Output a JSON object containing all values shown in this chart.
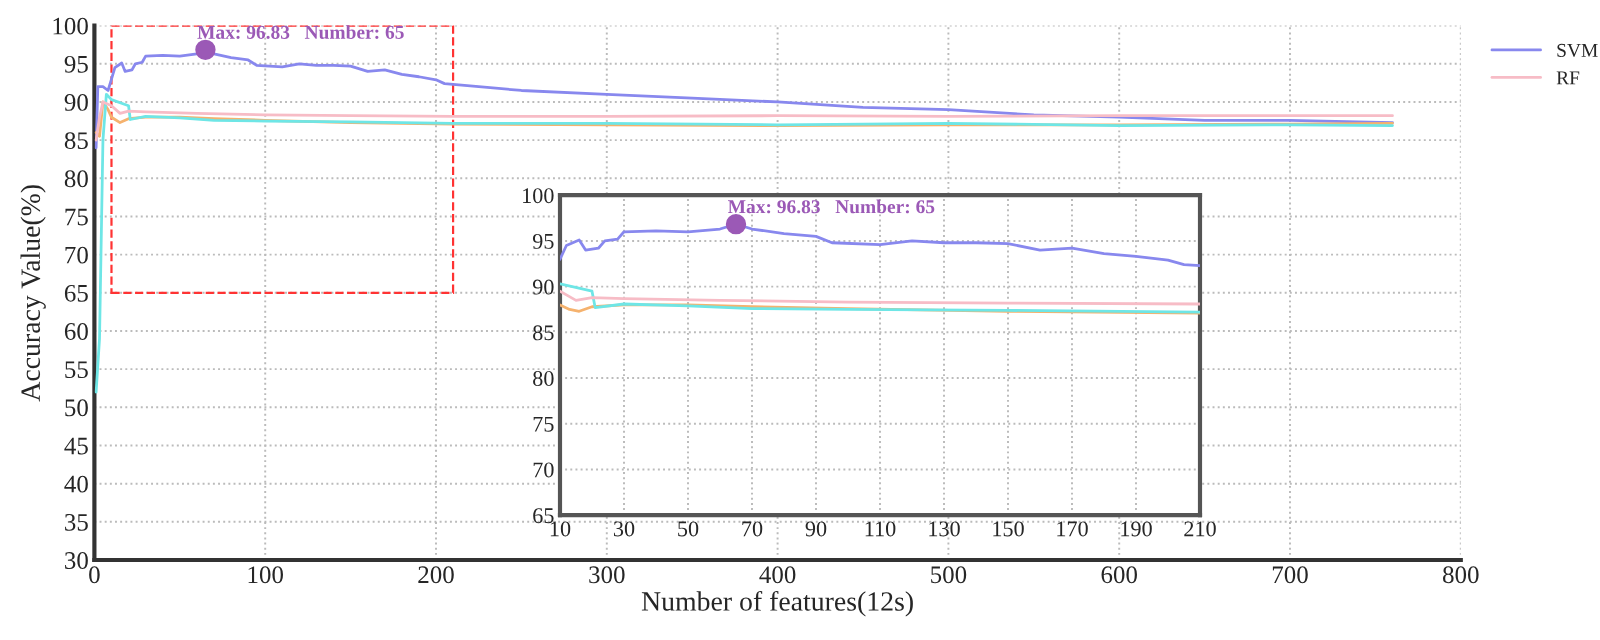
{
  "chart_data": [
    {
      "type": "line",
      "xlabel": "Number of features(12s)",
      "ylabel": "Accuracy Value(%)",
      "xlim": [
        0,
        800
      ],
      "ylim": [
        30,
        100
      ],
      "xticks": [
        0,
        100,
        200,
        300,
        400,
        500,
        600,
        700,
        800
      ],
      "yticks": [
        30,
        35,
        40,
        45,
        50,
        55,
        60,
        65,
        70,
        75,
        80,
        85,
        90,
        95,
        100
      ],
      "grid": true,
      "legend": "top right",
      "annotations": [
        {
          "text": "Max: 96.83   Number: 65",
          "x": 65,
          "y": 96.83
        }
      ],
      "series": [
        {
          "name": "SVM",
          "color": "#8888ee",
          "x": [
            1,
            2,
            5,
            8,
            10,
            12,
            16,
            18,
            22,
            24,
            28,
            30,
            40,
            50,
            60,
            65,
            70,
            80,
            90,
            95,
            110,
            120,
            130,
            140,
            150,
            160,
            170,
            180,
            190,
            200,
            205,
            210,
            250,
            300,
            350,
            400,
            450,
            500,
            550,
            600,
            650,
            700,
            760
          ],
          "values": [
            84,
            92,
            92,
            91.5,
            93,
            94.5,
            95.1,
            94,
            94.2,
            95,
            95.2,
            96,
            96.1,
            96,
            96.3,
            96.83,
            96.3,
            95.8,
            95.5,
            94.8,
            94.6,
            95,
            94.8,
            94.8,
            94.7,
            94,
            94.2,
            93.6,
            93.3,
            92.9,
            92.4,
            92.3,
            91.5,
            91,
            90.5,
            90,
            89.3,
            89,
            88.3,
            88,
            87.6,
            87.6,
            87.3
          ]
        },
        {
          "color": "#f5b26e",
          "x": [
            1,
            3,
            5,
            8,
            10,
            15,
            20,
            30,
            50,
            70,
            100,
            150,
            210,
            300,
            400,
            500,
            600,
            700,
            760
          ],
          "values": [
            86,
            85.5,
            90,
            89,
            88,
            87.3,
            87.8,
            88,
            88,
            87.8,
            87.6,
            87.3,
            87.1,
            87,
            86.9,
            87,
            87,
            87.1,
            87.2
          ]
        },
        {
          "color": "#6ee6e6",
          "x": [
            1,
            3,
            5,
            7,
            10,
            20,
            21,
            30,
            50,
            70,
            100,
            150,
            210,
            300,
            400,
            500,
            600,
            700,
            760
          ],
          "values": [
            52,
            59,
            85,
            91,
            90.3,
            89.5,
            87.7,
            88.1,
            87.9,
            87.6,
            87.5,
            87.4,
            87.2,
            87.2,
            87,
            87.2,
            86.9,
            87,
            86.9
          ]
        },
        {
          "name": "RF",
          "color": "#f7bcc6",
          "x": [
            1,
            3,
            5,
            10,
            15,
            20,
            30,
            60,
            100,
            150,
            210,
            300,
            400,
            500,
            600,
            700,
            760
          ],
          "values": [
            85,
            88,
            90,
            89.5,
            88.5,
            88.8,
            88.7,
            88.5,
            88.3,
            88.2,
            88.1,
            88.1,
            88.2,
            88.1,
            88.2,
            88.2,
            88.2
          ]
        },
        {
          "type": "scatter",
          "color": "#9b59b6",
          "marker": "circle",
          "x": [
            65
          ],
          "values": [
            96.83
          ]
        }
      ]
    },
    {
      "type": "line",
      "xlim": [
        10,
        210
      ],
      "ylim": [
        65,
        100
      ],
      "xticks": [
        10,
        30,
        50,
        70,
        90,
        110,
        130,
        150,
        170,
        190,
        210
      ],
      "yticks": [
        65,
        70,
        75,
        80,
        85,
        90,
        95,
        100
      ],
      "grid": true,
      "annotations": [
        {
          "text": "Max: 96.83   Number: 65",
          "x": 65,
          "y": 96.83
        }
      ],
      "series": [
        {
          "color": "#8888ee",
          "x": [
            10,
            12,
            16,
            18,
            22,
            24,
            28,
            30,
            40,
            50,
            60,
            65,
            70,
            80,
            90,
            95,
            110,
            120,
            130,
            140,
            150,
            160,
            170,
            180,
            190,
            200,
            205,
            210
          ],
          "values": [
            93,
            94.5,
            95.1,
            94,
            94.2,
            95,
            95.2,
            96,
            96.1,
            96,
            96.3,
            96.83,
            96.3,
            95.8,
            95.5,
            94.8,
            94.6,
            95,
            94.8,
            94.8,
            94.7,
            94,
            94.2,
            93.6,
            93.3,
            92.9,
            92.4,
            92.3
          ]
        },
        {
          "color": "#f5b26e",
          "x": [
            10,
            13,
            16,
            20,
            30,
            50,
            70,
            100,
            150,
            210
          ],
          "values": [
            88,
            87.5,
            87.3,
            87.8,
            88,
            88,
            87.8,
            87.6,
            87.3,
            87.1
          ]
        },
        {
          "color": "#6ee6e6",
          "x": [
            10,
            20,
            21,
            30,
            50,
            70,
            100,
            150,
            210
          ],
          "values": [
            90.3,
            89.5,
            87.7,
            88.1,
            87.9,
            87.6,
            87.5,
            87.4,
            87.2
          ]
        },
        {
          "color": "#f7bcc6",
          "x": [
            10,
            15,
            20,
            30,
            60,
            100,
            150,
            210
          ],
          "values": [
            89.5,
            88.5,
            88.8,
            88.7,
            88.5,
            88.3,
            88.2,
            88.1
          ]
        },
        {
          "type": "scatter",
          "color": "#9b59b6",
          "marker": "circle",
          "x": [
            65
          ],
          "values": [
            96.83
          ]
        }
      ]
    }
  ]
}
